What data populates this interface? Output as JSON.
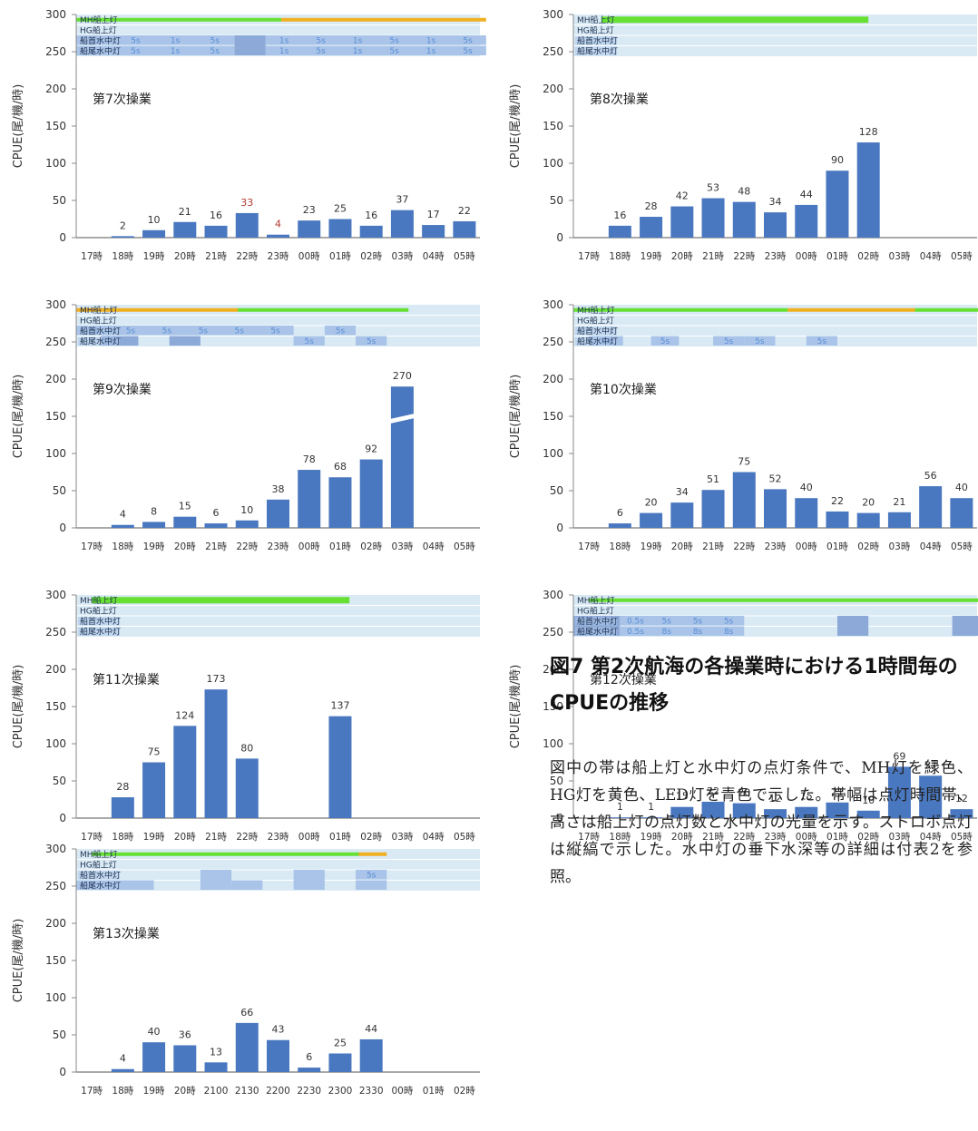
{
  "figure": {
    "title": "図7 第2次航海の各操業時における1時間毎のCPUEの推移",
    "description": "図中の帯は船上灯と水中灯の点灯条件で、MH灯を緑色、HG灯を黄色、LED灯を青色で示した。帯幅は点灯時間帯、高さは船上灯の点灯数と水中灯の光量を示す。ストロボ点灯は縦縞で示した。水中灯の垂下水深等の詳細は付表2を参照。"
  },
  "colors": {
    "bar": "#4a78c0",
    "mh_green": "#66e033",
    "hg_yellow": "#f0b020",
    "band_bg": "#d9eaf5",
    "led_blue": "#a9c4e8",
    "led_dark": "#8da9d8",
    "label_blue": "#5a8dd6"
  },
  "chart_data": [
    {
      "type": "bar",
      "title": "第7次操業",
      "ylabel": "CPUE(尾/機/時)",
      "ylim": [
        0,
        300
      ],
      "yticks": [
        0,
        50,
        100,
        150,
        200,
        250,
        300
      ],
      "categories": [
        "17時",
        "18時",
        "19時",
        "20時",
        "21時",
        "22時",
        "23時",
        "00時",
        "01時",
        "02時",
        "03時",
        "04時",
        "05時"
      ],
      "values": [
        null,
        2,
        10,
        21,
        16,
        33,
        4,
        23,
        25,
        16,
        37,
        17,
        22
      ],
      "value_labels": [
        "",
        "2",
        "10",
        "21",
        "16",
        "33",
        "4",
        "23",
        "25",
        "16",
        "37",
        "17",
        "22"
      ],
      "red_labels": [
        5,
        6
      ],
      "lights": {
        "rows": [
          "MH船上灯",
          "HG船上灯",
          "船首水中灯",
          "船尾水中灯"
        ],
        "light_rows": [
          0,
          1
        ],
        "lines": [
          {
            "row": 0,
            "from": 0,
            "to": 6.6,
            "color": "green"
          },
          {
            "row": 0,
            "from": 6.6,
            "to": 13.2,
            "color": "yellow"
          }
        ],
        "cells": [
          {
            "row": 2,
            "from": 0,
            "to": 5.1,
            "labels": [
              "1s",
              "5s",
              "1s",
              "5s"
            ],
            "tone": "led"
          },
          {
            "row": 3,
            "from": 0,
            "to": 5.1,
            "labels": [
              "1s",
              "5s",
              "1s",
              "5s"
            ],
            "tone": "led"
          },
          {
            "row": 2,
            "from": 5.1,
            "to": 6.1,
            "span": 2,
            "tone": "dark"
          },
          {
            "row": 2,
            "from": 6.1,
            "to": 13.2,
            "labels": [
              "1s",
              "5s",
              "1s",
              "5s",
              "1s",
              "5s"
            ],
            "tone": "led"
          },
          {
            "row": 3,
            "from": 6.1,
            "to": 13.2,
            "labels": [
              "1s",
              "5s",
              "1s",
              "5s",
              "1s",
              "5s"
            ],
            "tone": "led"
          }
        ]
      }
    },
    {
      "type": "bar",
      "title": "第8次操業",
      "ylabel": "CPUE(尾/機/時)",
      "ylim": [
        0,
        300
      ],
      "yticks": [
        0,
        50,
        100,
        150,
        200,
        250,
        300
      ],
      "categories": [
        "17時",
        "18時",
        "19時",
        "20時",
        "21時",
        "22時",
        "23時",
        "00時",
        "01時",
        "02時",
        "03時",
        "04時",
        "05時"
      ],
      "values": [
        null,
        16,
        28,
        42,
        53,
        48,
        34,
        44,
        90,
        128,
        null,
        null,
        null
      ],
      "value_labels": [
        "",
        "16",
        "28",
        "42",
        "53",
        "48",
        "34",
        "44",
        "90",
        "128",
        "",
        "",
        ""
      ],
      "lights": {
        "rows": [
          "MH船上灯",
          "HG船上灯",
          "船首水中灯",
          "船尾水中灯"
        ],
        "light_rows": [
          0,
          1
        ],
        "lines": [
          {
            "row": 0,
            "from": 0.9,
            "to": 9.5,
            "color": "green",
            "thick": true
          }
        ],
        "cells": []
      }
    },
    {
      "type": "bar",
      "title": "第9次操業",
      "ylabel": "CPUE(尾/機/時)",
      "ylim": [
        0,
        300
      ],
      "yticks": [
        0,
        50,
        100,
        150,
        200,
        250,
        300
      ],
      "categories": [
        "17時",
        "18時",
        "19時",
        "20時",
        "21時",
        "22時",
        "23時",
        "00時",
        "01時",
        "02時",
        "03時",
        "04時",
        "05時"
      ],
      "values": [
        null,
        4,
        8,
        15,
        6,
        10,
        38,
        78,
        68,
        92,
        270,
        null,
        null
      ],
      "value_labels": [
        "",
        "4",
        "8",
        "15",
        "6",
        "10",
        "38",
        "78",
        "68",
        "92",
        "270",
        "",
        ""
      ],
      "broken": [
        10
      ],
      "lights": {
        "rows": [
          "MH船上灯",
          "HG船上灯",
          "船首水中灯",
          "船尾水中灯"
        ],
        "light_rows": [
          0,
          1
        ],
        "lines": [
          {
            "row": 0,
            "from": 0,
            "to": 5.2,
            "color": "yellow"
          },
          {
            "row": 0,
            "from": 5.2,
            "to": 10.7,
            "color": "green"
          }
        ],
        "cells": [
          {
            "row": 2,
            "from": 0,
            "to": 7.0,
            "labels": [
              "5s",
              "5s",
              "5s",
              "5s",
              "5s",
              "5s"
            ],
            "tone": "led"
          },
          {
            "row": 2,
            "from": 8.0,
            "to": 9.0,
            "labels": [
              "5s"
            ],
            "tone": "led"
          },
          {
            "row": 3,
            "from": 0.8,
            "to": 2.0,
            "tone": "dark"
          },
          {
            "row": 3,
            "from": 3.0,
            "to": 4.0,
            "tone": "dark"
          },
          {
            "row": 3,
            "from": 7.0,
            "to": 8.0,
            "labels": [
              "5s"
            ],
            "tone": "led"
          },
          {
            "row": 3,
            "from": 9.0,
            "to": 10.0,
            "labels": [
              "5s"
            ],
            "tone": "led"
          }
        ]
      }
    },
    {
      "type": "bar",
      "title": "第10次操業",
      "ylabel": "CPUE(尾/機/時)",
      "ylim": [
        0,
        300
      ],
      "yticks": [
        0,
        50,
        100,
        150,
        200,
        250,
        300
      ],
      "categories": [
        "17時",
        "18時",
        "19時",
        "20時",
        "21時",
        "22時",
        "23時",
        "00時",
        "01時",
        "02時",
        "03時",
        "04時",
        "05時"
      ],
      "values": [
        null,
        6,
        20,
        34,
        51,
        75,
        52,
        40,
        22,
        20,
        21,
        56,
        40
      ],
      "value_labels": [
        "",
        "6",
        "20",
        "34",
        "51",
        "75",
        "52",
        "40",
        "22",
        "20",
        "21",
        "56",
        "40"
      ],
      "lights": {
        "rows": [
          "MH船上灯",
          "HG船上灯",
          "船首水中灯",
          "船尾水中灯"
        ],
        "light_rows": [
          0,
          1
        ],
        "lines": [
          {
            "row": 0,
            "from": 0,
            "to": 6.9,
            "color": "green"
          },
          {
            "row": 0,
            "from": 6.9,
            "to": 11.0,
            "color": "yellow"
          },
          {
            "row": 0,
            "from": 11.0,
            "to": 13.2,
            "color": "green"
          }
        ],
        "cells": [
          {
            "row": 3,
            "from": 0.5,
            "to": 1.6,
            "labels": [
              "5s"
            ],
            "tone": "led"
          },
          {
            "row": 3,
            "from": 2.5,
            "to": 3.4,
            "labels": [
              "5s"
            ],
            "tone": "led"
          },
          {
            "row": 3,
            "from": 4.5,
            "to": 5.5,
            "labels": [
              "5s"
            ],
            "tone": "led"
          },
          {
            "row": 3,
            "from": 5.5,
            "to": 6.5,
            "labels": [
              "5s"
            ],
            "tone": "led"
          },
          {
            "row": 3,
            "from": 7.5,
            "to": 8.5,
            "labels": [
              "5s"
            ],
            "tone": "led"
          }
        ]
      }
    },
    {
      "type": "bar",
      "title": "第11次操業",
      "ylabel": "CPUE(尾/機/時)",
      "ylim": [
        0,
        300
      ],
      "yticks": [
        0,
        50,
        100,
        150,
        200,
        250,
        300
      ],
      "categories": [
        "17時",
        "18時",
        "19時",
        "20時",
        "21時",
        "22時",
        "23時",
        "00時",
        "01時",
        "02時",
        "03時",
        "04時",
        "05時"
      ],
      "values": [
        null,
        28,
        75,
        124,
        173,
        80,
        null,
        null,
        137,
        null,
        null,
        null,
        null
      ],
      "value_labels": [
        "",
        "28",
        "75",
        "124",
        "173",
        "80",
        "",
        "",
        "137",
        "",
        "",
        "",
        ""
      ],
      "lights": {
        "rows": [
          "MH船上灯",
          "HG船上灯",
          "船首水中灯",
          "船尾水中灯"
        ],
        "light_rows": [
          0,
          1
        ],
        "lines": [
          {
            "row": 0,
            "from": 0.5,
            "to": 8.8,
            "color": "green",
            "thick": true
          }
        ],
        "cells": []
      }
    },
    {
      "type": "bar",
      "title": "第12次操業",
      "ylabel": "CPUE(尾/機/時)",
      "ylim": [
        0,
        300
      ],
      "yticks": [
        0,
        50,
        100,
        150,
        200,
        250,
        300
      ],
      "categories": [
        "17時",
        "18時",
        "19時",
        "20時",
        "21時",
        "22時",
        "23時",
        "00時",
        "01時",
        "02時",
        "03時",
        "04時",
        "05時"
      ],
      "values": [
        null,
        1,
        1,
        15,
        22,
        20,
        12,
        15,
        21,
        10,
        69,
        57,
        12
      ],
      "value_labels": [
        "",
        "1",
        "1",
        "15",
        "22",
        "20",
        "12",
        "15",
        "21",
        "10",
        "69",
        "57",
        "12"
      ],
      "lights": {
        "rows": [
          "MH船上灯",
          "HG船上灯",
          "船首水中灯",
          "船尾水中灯"
        ],
        "light_rows": [
          0,
          1
        ],
        "lines": [
          {
            "row": 0,
            "from": 0.5,
            "to": 13.2,
            "color": "green"
          }
        ],
        "cells": [
          {
            "row": 2,
            "from": 0,
            "to": 1.5,
            "span": 2,
            "tone": "dark"
          },
          {
            "row": 2,
            "from": 1.5,
            "to": 5.5,
            "labels": [
              "0.5s",
              "5s",
              "5s",
              "5s"
            ],
            "tone": "led"
          },
          {
            "row": 3,
            "from": 1.5,
            "to": 5.5,
            "labels": [
              "0.5s",
              "8s",
              "8s",
              "8s"
            ],
            "tone": "led"
          },
          {
            "row": 2,
            "from": 8.5,
            "to": 9.5,
            "span": 2,
            "tone": "dark"
          },
          {
            "row": 2,
            "from": 12.2,
            "to": 13.2,
            "span": 2,
            "tone": "dark"
          }
        ]
      }
    },
    {
      "type": "bar",
      "title": "第13次操業",
      "ylabel": "CPUE(尾/機/時)",
      "ylim": [
        0,
        300
      ],
      "yticks": [
        0,
        50,
        100,
        150,
        200,
        250,
        300
      ],
      "categories": [
        "17時",
        "18時",
        "19時",
        "20時",
        "2100",
        "2130",
        "2200",
        "2230",
        "2300",
        "2330",
        "00時",
        "01時",
        "02時"
      ],
      "values": [
        null,
        4,
        40,
        36,
        13,
        66,
        43,
        6,
        25,
        44,
        null,
        null,
        null
      ],
      "value_labels": [
        "",
        "4",
        "40",
        "36",
        "13",
        "66",
        "43",
        "6",
        "25",
        "44",
        "",
        "",
        ""
      ],
      "lights": {
        "rows": [
          "MH船上灯",
          "HG船上灯",
          "船首水中灯",
          "船尾水中灯"
        ],
        "light_rows": [
          0,
          1
        ],
        "lines": [
          {
            "row": 0,
            "from": 0.5,
            "to": 9.1,
            "color": "green"
          },
          {
            "row": 0,
            "from": 9.1,
            "to": 10.0,
            "color": "yellow"
          }
        ],
        "cells": [
          {
            "row": 3,
            "from": 0,
            "to": 2.5,
            "tone": "led"
          },
          {
            "row": 2,
            "from": 4.0,
            "to": 5.0,
            "span": 2,
            "tone": "led"
          },
          {
            "row": 3,
            "from": 5.0,
            "to": 6.0,
            "tone": "led"
          },
          {
            "row": 2,
            "from": 7.0,
            "to": 8.0,
            "span": 2,
            "tone": "led"
          },
          {
            "row": 2,
            "from": 9.0,
            "to": 10.0,
            "labels": [
              "5s"
            ],
            "tone": "led"
          },
          {
            "row": 3,
            "from": 9.0,
            "to": 10.0,
            "tone": "led"
          }
        ]
      }
    }
  ]
}
